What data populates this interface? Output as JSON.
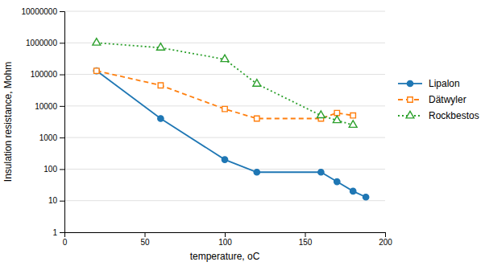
{
  "chart_data": {
    "type": "line",
    "x_label": "temperature, oC",
    "y_label": "Insulation resistance, Mohm",
    "series": [
      {
        "name": "Lipalon",
        "marker": "circle",
        "line_style": "solid",
        "x": [
          20,
          60,
          100,
          120,
          160,
          170,
          180,
          188
        ],
        "values": [
          130000,
          4000,
          200,
          80,
          80,
          40,
          20,
          13
        ]
      },
      {
        "name": "Dätwyler",
        "marker": "square",
        "line_style": "dashed",
        "x": [
          20,
          60,
          100,
          120,
          160,
          170,
          180
        ],
        "values": [
          130000,
          45000,
          8000,
          4000,
          4000,
          6000,
          5000
        ]
      },
      {
        "name": "Rockbestos",
        "marker": "triangle",
        "line_style": "dotted",
        "x": [
          20,
          60,
          100,
          120,
          160,
          170,
          180
        ],
        "values": [
          1000000,
          700000,
          300000,
          50000,
          5000,
          3500,
          2500
        ]
      }
    ],
    "xlim": [
      0,
      200
    ],
    "xticks": [
      0,
      50,
      100,
      150,
      200
    ],
    "ylim": [
      1,
      10000000
    ],
    "yticks": [
      1,
      10,
      100,
      1000,
      10000,
      100000,
      1000000,
      10000000
    ],
    "log": "y",
    "grid": true,
    "legend": "right"
  }
}
